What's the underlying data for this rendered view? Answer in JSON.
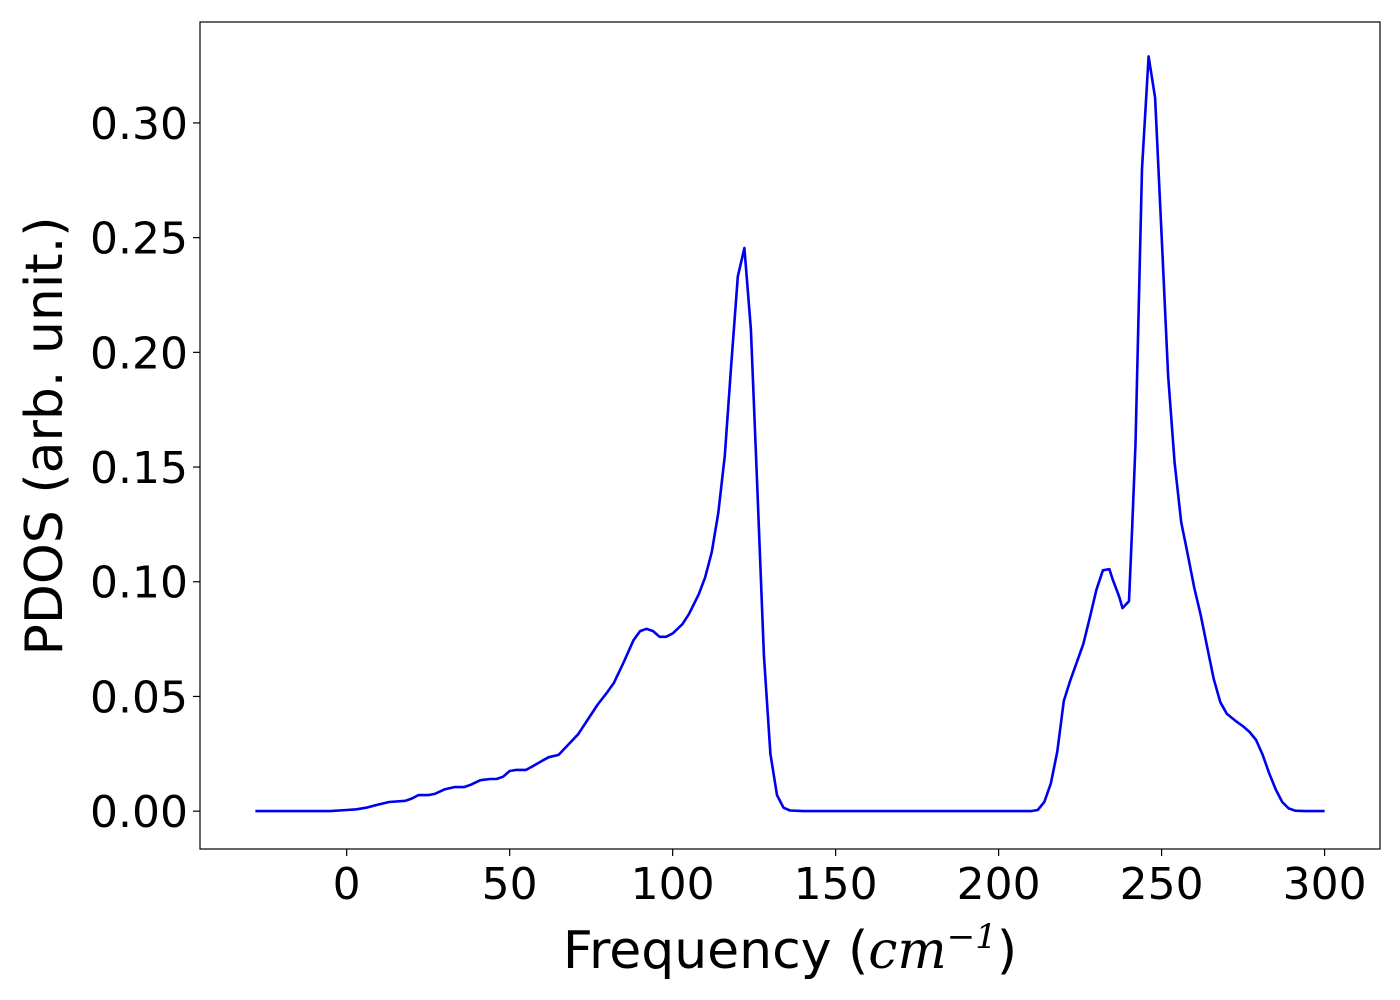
{
  "chart_data": {
    "type": "line",
    "title": "",
    "xlabel": "Frequency (",
    "xlabel_math_base": "cm",
    "xlabel_math_sup": "−1",
    "xlabel_close": ")",
    "ylabel": "PDOS (arb. unit.)",
    "xlim": [
      -45,
      317
    ],
    "ylim": [
      -0.0165,
      0.344
    ],
    "xticks": [
      0,
      50,
      100,
      150,
      200,
      250,
      300
    ],
    "xtick_labels": [
      "0",
      "50",
      "100",
      "150",
      "200",
      "250",
      "300"
    ],
    "yticks": [
      0.0,
      0.05,
      0.1,
      0.15,
      0.2,
      0.25,
      0.3
    ],
    "ytick_labels": [
      "0.00",
      "0.05",
      "0.10",
      "0.15",
      "0.20",
      "0.25",
      "0.30"
    ],
    "grid": false,
    "legend": "none",
    "series": [
      {
        "color": "#0000ee",
        "points": [
          [
            -28,
            0.0
          ],
          [
            -5,
            0.0
          ],
          [
            0,
            0.0005
          ],
          [
            3,
            0.0008
          ],
          [
            6,
            0.0015
          ],
          [
            10,
            0.003
          ],
          [
            13,
            0.004
          ],
          [
            18,
            0.0045
          ],
          [
            20,
            0.0055
          ],
          [
            22,
            0.007
          ],
          [
            25,
            0.007
          ],
          [
            27,
            0.0075
          ],
          [
            30,
            0.0095
          ],
          [
            33,
            0.0105
          ],
          [
            36,
            0.0105
          ],
          [
            38,
            0.0115
          ],
          [
            41,
            0.0135
          ],
          [
            44,
            0.014
          ],
          [
            46,
            0.014
          ],
          [
            48,
            0.015
          ],
          [
            50,
            0.0175
          ],
          [
            52,
            0.018
          ],
          [
            55,
            0.018
          ],
          [
            57,
            0.0195
          ],
          [
            60,
            0.022
          ],
          [
            62,
            0.0235
          ],
          [
            65,
            0.0245
          ],
          [
            68,
            0.029
          ],
          [
            71,
            0.0335
          ],
          [
            74,
            0.04
          ],
          [
            77,
            0.0465
          ],
          [
            80,
            0.052
          ],
          [
            82,
            0.056
          ],
          [
            85,
            0.065
          ],
          [
            88,
            0.0745
          ],
          [
            90,
            0.0785
          ],
          [
            92,
            0.0795
          ],
          [
            94,
            0.0785
          ],
          [
            96,
            0.076
          ],
          [
            98,
            0.076
          ],
          [
            100,
            0.0775
          ],
          [
            103,
            0.0815
          ],
          [
            105,
            0.086
          ],
          [
            108,
            0.0945
          ],
          [
            110,
            0.102
          ],
          [
            112,
            0.113
          ],
          [
            114,
            0.13
          ],
          [
            116,
            0.155
          ],
          [
            118,
            0.195
          ],
          [
            120,
            0.233
          ],
          [
            122,
            0.2455
          ],
          [
            124,
            0.21
          ],
          [
            126,
            0.14
          ],
          [
            128,
            0.068
          ],
          [
            130,
            0.025
          ],
          [
            132,
            0.007
          ],
          [
            134,
            0.0015
          ],
          [
            136,
            0.0003
          ],
          [
            140,
            0.0
          ],
          [
            210,
            0.0
          ],
          [
            212,
            0.0005
          ],
          [
            214,
            0.004
          ],
          [
            216,
            0.012
          ],
          [
            218,
            0.026
          ],
          [
            220,
            0.048
          ],
          [
            222,
            0.057
          ],
          [
            224,
            0.065
          ],
          [
            226,
            0.073
          ],
          [
            228,
            0.0845
          ],
          [
            230,
            0.0965
          ],
          [
            232,
            0.105
          ],
          [
            234,
            0.1055
          ],
          [
            235,
            0.101
          ],
          [
            237,
            0.0935
          ],
          [
            238,
            0.0885
          ],
          [
            240,
            0.0915
          ],
          [
            241,
            0.125
          ],
          [
            242,
            0.16
          ],
          [
            244,
            0.28
          ],
          [
            246,
            0.329
          ],
          [
            248,
            0.311
          ],
          [
            250,
            0.251
          ],
          [
            252,
            0.19
          ],
          [
            254,
            0.152
          ],
          [
            256,
            0.126
          ],
          [
            258,
            0.112
          ],
          [
            260,
            0.0975
          ],
          [
            262,
            0.0855
          ],
          [
            264,
            0.0715
          ],
          [
            266,
            0.0575
          ],
          [
            268,
            0.0475
          ],
          [
            270,
            0.0425
          ],
          [
            273,
            0.039
          ],
          [
            275,
            0.037
          ],
          [
            277,
            0.0345
          ],
          [
            279,
            0.031
          ],
          [
            281,
            0.0245
          ],
          [
            283,
            0.0165
          ],
          [
            285,
            0.0095
          ],
          [
            287,
            0.004
          ],
          [
            289,
            0.0012
          ],
          [
            291,
            0.0002
          ],
          [
            294,
            0.0
          ],
          [
            300,
            0.0
          ]
        ]
      }
    ]
  }
}
